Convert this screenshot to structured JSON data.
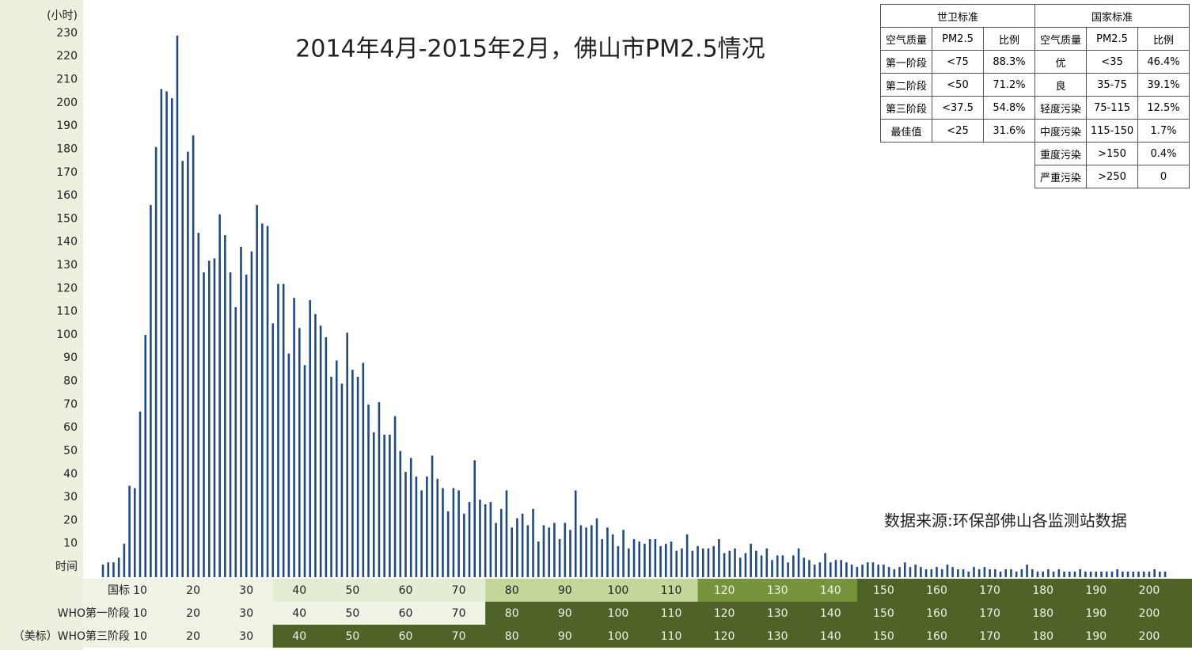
{
  "chart_data": {
    "type": "bar",
    "title": "2014年4月-2015年2月，佛山市PM2.5情况",
    "y_unit": "(小时)",
    "source": "数据来源:环保部佛山各监测站数据",
    "color": "#244a7c",
    "x": [
      3,
      4,
      5,
      6,
      7,
      8,
      9,
      10,
      11,
      12,
      13,
      14,
      15,
      16,
      17,
      18,
      19,
      20,
      21,
      22,
      23,
      24,
      25,
      26,
      27,
      28,
      29,
      30,
      31,
      32,
      33,
      34,
      35,
      36,
      37,
      38,
      39,
      40,
      41,
      42,
      43,
      44,
      45,
      46,
      47,
      48,
      49,
      50,
      51,
      52,
      53,
      54,
      55,
      56,
      57,
      58,
      59,
      60,
      61,
      62,
      63,
      64,
      65,
      66,
      67,
      68,
      69,
      70,
      71,
      72,
      73,
      74,
      75,
      76,
      77,
      78,
      79,
      80,
      81,
      82,
      83,
      84,
      85,
      86,
      87,
      88,
      89,
      90,
      91,
      92,
      93,
      94,
      95,
      96,
      97,
      98,
      99,
      100,
      101,
      102,
      103,
      104,
      105,
      106,
      107,
      108,
      109,
      110,
      111,
      112,
      113,
      114,
      115,
      116,
      117,
      118,
      119,
      120,
      121,
      122,
      123,
      124,
      125,
      126,
      127,
      128,
      129,
      130,
      131,
      132,
      133,
      134,
      135,
      136,
      137,
      138,
      139,
      140,
      141,
      142,
      143,
      144,
      145,
      146,
      147,
      148,
      149,
      150,
      151,
      152,
      153,
      154,
      155,
      156,
      157,
      158,
      159,
      160,
      161,
      162,
      163,
      164,
      165,
      166,
      167,
      168,
      169,
      170,
      171,
      172,
      173,
      174,
      175,
      176,
      177,
      178,
      179,
      180,
      181,
      182,
      183,
      184,
      185,
      186,
      187,
      188,
      189,
      190,
      191,
      192,
      193,
      194,
      195,
      196,
      197,
      198,
      199,
      200,
      201,
      202,
      203
    ],
    "values": [
      3,
      4,
      4,
      6,
      12,
      37,
      36,
      69,
      102,
      158,
      183,
      208,
      207,
      204,
      231,
      177,
      181,
      188,
      146,
      129,
      134,
      135,
      154,
      145,
      129,
      114,
      140,
      128,
      138,
      158,
      150,
      149,
      107,
      124,
      124,
      94,
      118,
      105,
      89,
      117,
      111,
      106,
      101,
      84,
      91,
      81,
      103,
      87,
      84,
      90,
      72,
      60,
      73,
      59,
      59,
      67,
      52,
      43,
      49,
      41,
      35,
      41,
      50,
      40,
      36,
      26,
      36,
      35,
      25,
      30,
      48,
      31,
      29,
      30,
      21,
      27,
      35,
      19,
      23,
      25,
      20,
      27,
      13,
      20,
      19,
      21,
      14,
      21,
      18,
      35,
      20,
      19,
      20,
      23,
      14,
      19,
      16,
      11,
      18,
      10,
      14,
      13,
      12,
      14,
      14,
      11,
      12,
      13,
      9,
      10,
      16,
      9,
      11,
      10,
      10,
      11,
      14,
      8,
      9,
      10,
      6,
      8,
      12,
      9,
      7,
      10,
      5,
      7,
      7,
      4,
      7,
      10,
      6,
      5,
      3,
      4,
      8,
      4,
      5,
      5,
      4,
      3,
      2,
      3,
      4,
      4,
      3,
      3,
      2,
      1,
      2,
      4,
      2,
      3,
      2,
      1,
      1,
      2,
      1,
      3,
      2,
      1,
      1,
      0,
      2,
      1,
      2,
      1,
      1,
      0,
      1,
      1,
      0,
      1,
      3,
      1,
      0,
      0,
      1,
      0,
      1,
      0,
      0,
      0,
      1,
      0,
      0,
      0,
      0,
      0,
      0,
      1,
      0,
      0,
      0,
      0,
      0,
      0,
      1,
      0,
      0
    ],
    "ylim": [
      0,
      231
    ],
    "yticks": [
      {
        "value": 0,
        "label": "时间"
      },
      10,
      20,
      30,
      40,
      50,
      60,
      70,
      80,
      90,
      100,
      110,
      120,
      130,
      140,
      150,
      160,
      170,
      180,
      190,
      200,
      210,
      220,
      230
    ],
    "xticks": [
      10,
      20,
      30,
      40,
      50,
      60,
      70,
      80,
      90,
      100,
      110,
      120,
      130,
      140,
      150,
      160,
      170,
      180,
      190,
      200
    ],
    "x_rows": [
      {
        "name": "国标",
        "colors": [
          "#eef3e6",
          "#eef3e6",
          "#eef3e6",
          "#e3edd4",
          "#e3edd4",
          "#e3edd4",
          "#e3edd4",
          "#c4d79b",
          "#c4d79b",
          "#c4d79b",
          "#c4d79b",
          "#77933c",
          "#77933c",
          "#77933c",
          "#4f6228",
          "#4f6228",
          "#4f6228",
          "#4f6228",
          "#4f6228",
          "#4f6228"
        ]
      },
      {
        "name": "WHO第一阶段",
        "colors": [
          "#eef3e6",
          "#eef3e6",
          "#eef3e6",
          "#eef3e6",
          "#eef3e6",
          "#eef3e6",
          "#eef3e6",
          "#4f6228",
          "#4f6228",
          "#4f6228",
          "#4f6228",
          "#4f6228",
          "#4f6228",
          "#4f6228",
          "#4f6228",
          "#4f6228",
          "#4f6228",
          "#4f6228",
          "#4f6228",
          "#4f6228"
        ]
      },
      {
        "name": "（美标）WHO第三阶段",
        "colors": [
          "#eef3e6",
          "#eef3e6",
          "#eef3e6",
          "#4f6228",
          "#4f6228",
          "#4f6228",
          "#4f6228",
          "#4f6228",
          "#4f6228",
          "#4f6228",
          "#4f6228",
          "#4f6228",
          "#4f6228",
          "#4f6228",
          "#4f6228",
          "#4f6228",
          "#4f6228",
          "#4f6228",
          "#4f6228",
          "#4f6228"
        ]
      }
    ],
    "tables": [
      {
        "title": "世卫标准",
        "rows": [
          [
            "空气质量",
            "PM2.5",
            "比例"
          ],
          [
            "第一阶段",
            "<75",
            "88.3%"
          ],
          [
            "第二阶段",
            "<50",
            "71.2%"
          ],
          [
            "第三阶段",
            "<37.5",
            "54.8%"
          ],
          [
            "最佳值",
            "<25",
            "31.6%"
          ]
        ]
      },
      {
        "title": "国家标准",
        "rows": [
          [
            "空气质量",
            "PM2.5",
            "比例"
          ],
          [
            "优",
            "<35",
            "46.4%"
          ],
          [
            "良",
            "35-75",
            "39.1%"
          ],
          [
            "轻度污染",
            "75-115",
            "12.5%"
          ],
          [
            "中度污染",
            "115-150",
            "1.7%"
          ],
          [
            "重度污染",
            ">150",
            "0.4%"
          ],
          [
            "严重污染",
            ">250",
            "0"
          ]
        ]
      }
    ]
  }
}
